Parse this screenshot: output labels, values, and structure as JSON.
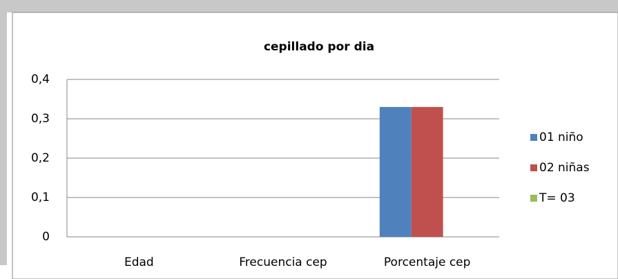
{
  "chart_data": {
    "type": "bar",
    "title": "cepillado por dia",
    "categories": [
      "Edad",
      "Frecuencia cep",
      "Porcentaje cep"
    ],
    "series": [
      {
        "name": "01 niño",
        "color": "#4f81bd",
        "values": [
          0,
          0,
          0.33
        ]
      },
      {
        "name": "02 niñas",
        "color": "#c0504d",
        "values": [
          0,
          0,
          0.33
        ]
      },
      {
        "name": "T= 03",
        "color": "#9bbb59",
        "values": [
          0,
          0,
          0
        ]
      }
    ],
    "ylim": [
      0,
      0.4
    ],
    "yticks": [
      0,
      {
        "value": 0.1,
        "label": "0,1"
      },
      {
        "value": 0.2,
        "label": "0,2"
      },
      {
        "value": 0.3,
        "label": "0,3"
      },
      {
        "value": 0.4,
        "label": "0,4"
      }
    ],
    "grid": true,
    "legend": "right"
  }
}
